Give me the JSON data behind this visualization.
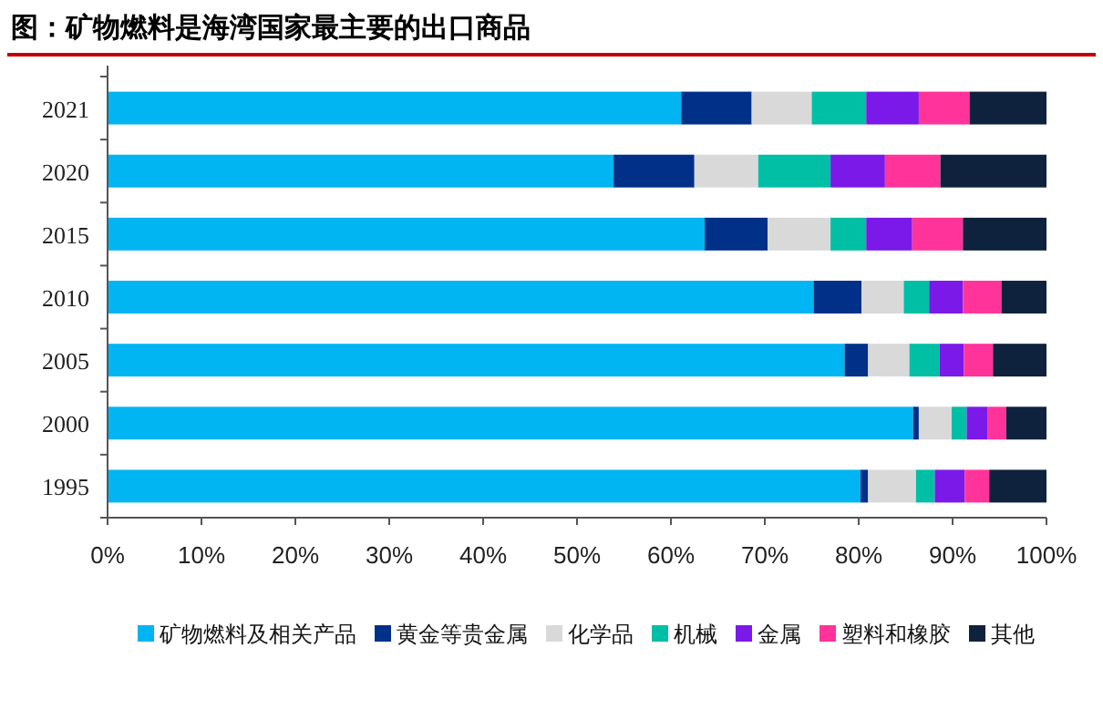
{
  "chart_data": {
    "type": "bar",
    "orientation": "horizontal",
    "stacked": true,
    "title": "图：矿物燃料是海湾国家最主要的出口商品",
    "categories": [
      "2021",
      "2020",
      "2015",
      "2010",
      "2005",
      "2000",
      "1995"
    ],
    "series": [
      {
        "name": "矿物燃料及相关产品",
        "color": "#00b5f1",
        "values": [
          61.1,
          53.9,
          63.6,
          75.2,
          78.5,
          85.8,
          80.2
        ]
      },
      {
        "name": "黄金等贵金属",
        "color": "#003087",
        "values": [
          7.5,
          8.6,
          6.7,
          5.1,
          2.5,
          0.6,
          0.8
        ]
      },
      {
        "name": "化学品",
        "color": "#d9d9d9",
        "values": [
          6.4,
          6.8,
          6.7,
          4.5,
          4.4,
          3.5,
          5.1
        ]
      },
      {
        "name": "机械",
        "color": "#00bfa5",
        "values": [
          5.8,
          7.7,
          3.8,
          2.7,
          3.2,
          1.6,
          2.0
        ]
      },
      {
        "name": "金属",
        "color": "#7b19e8",
        "values": [
          5.6,
          5.8,
          4.9,
          3.6,
          2.6,
          2.2,
          3.2
        ]
      },
      {
        "name": "塑料和橡胶",
        "color": "#ff3399",
        "values": [
          5.4,
          5.9,
          5.4,
          4.1,
          3.1,
          2.0,
          2.6
        ]
      },
      {
        "name": "其他",
        "color": "#0e223d",
        "values": [
          8.2,
          11.3,
          8.9,
          4.8,
          5.7,
          4.3,
          6.1
        ]
      }
    ],
    "xlim": [
      0,
      100
    ],
    "xticks": [
      {
        "value": 0,
        "label": "0%"
      },
      {
        "value": 10,
        "label": "10%"
      },
      {
        "value": 20,
        "label": "20%"
      },
      {
        "value": 30,
        "label": "30%"
      },
      {
        "value": 40,
        "label": "40%"
      },
      {
        "value": 50,
        "label": "50%"
      },
      {
        "value": 60,
        "label": "60%"
      },
      {
        "value": 70,
        "label": "70%"
      },
      {
        "value": 80,
        "label": "80%"
      },
      {
        "value": 90,
        "label": "90%"
      },
      {
        "value": 100,
        "label": "100%"
      }
    ],
    "grid": false,
    "legend": "bottom"
  }
}
